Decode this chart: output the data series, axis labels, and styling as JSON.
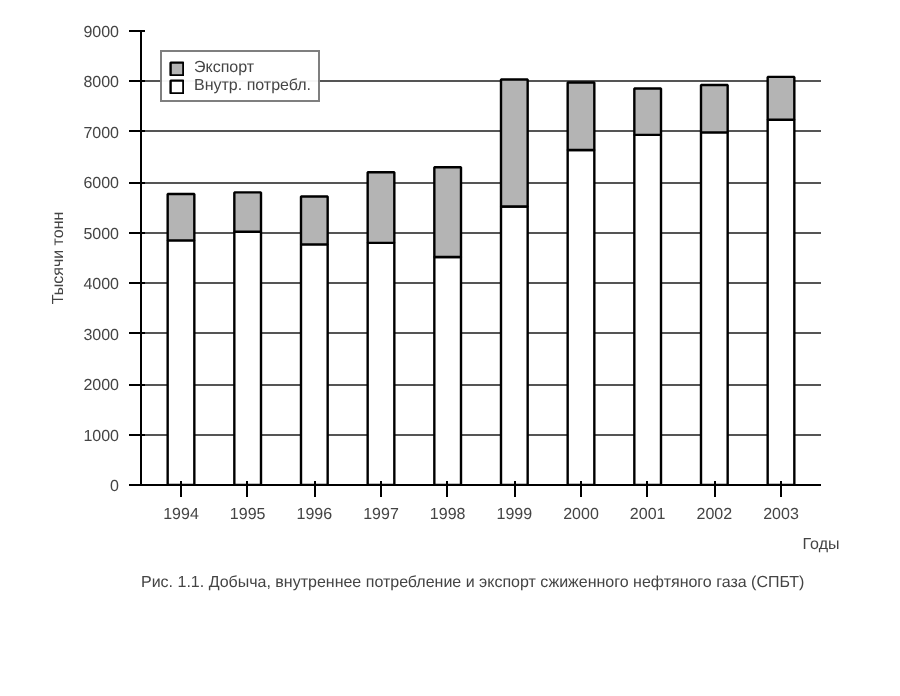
{
  "chart_data": {
    "type": "bar",
    "stacked": true,
    "categories": [
      "1994",
      "1995",
      "1996",
      "1997",
      "1998",
      "1999",
      "2000",
      "2001",
      "2002",
      "2003"
    ],
    "series": [
      {
        "name": "Внутр. потребл.",
        "color": "#ffffff",
        "values": [
          4850,
          5020,
          4770,
          4800,
          4520,
          5520,
          6640,
          6940,
          6990,
          7240
        ]
      },
      {
        "name": "Экспорт",
        "color": "#b4b4b4",
        "values": [
          920,
          780,
          950,
          1400,
          1780,
          2520,
          1340,
          920,
          940,
          850
        ]
      }
    ],
    "ylim": [
      0,
      9000
    ],
    "yticks": [
      0,
      1000,
      2000,
      3000,
      4000,
      5000,
      6000,
      7000,
      8000,
      9000
    ],
    "ylabel": "Тысячи тонн",
    "xlabel": "Годы",
    "grid": "y",
    "legend": "top left",
    "annotations": [
      "Рис. 1.1.  Добыча, внутреннее потребление и экспорт сжиженного нефтяного газа (СПБТ)"
    ]
  }
}
